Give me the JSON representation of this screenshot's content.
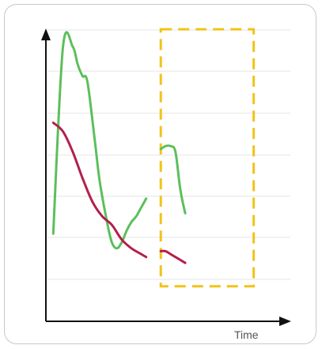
{
  "chart_data": {
    "type": "line",
    "xlabel": "Time",
    "ylabel": "",
    "xlim": [
      0,
      100
    ],
    "ylim": [
      0,
      100
    ],
    "grid": true,
    "highlight_region": {
      "x_start": 47,
      "x_end": 85,
      "y_min": 12,
      "y_max": 100,
      "color": "#f2c318"
    },
    "series": [
      {
        "color": "#5cbf5c",
        "segments": [
          [
            [
              3,
              30
            ],
            [
              7,
              94
            ],
            [
              11,
              94
            ],
            [
              13,
              88
            ],
            [
              15,
              84
            ],
            [
              17,
              82
            ],
            [
              20,
              62
            ],
            [
              22,
              48
            ],
            [
              25,
              34
            ],
            [
              27,
              27
            ],
            [
              29,
              25
            ],
            [
              31,
              27
            ],
            [
              33,
              31
            ],
            [
              35,
              34
            ],
            [
              37,
              36
            ],
            [
              39,
              39
            ],
            [
              41,
              42
            ]
          ],
          [
            [
              47,
              59
            ],
            [
              49,
              60
            ],
            [
              51,
              60
            ],
            [
              53,
              58
            ],
            [
              55,
              45
            ],
            [
              57,
              37
            ]
          ]
        ]
      },
      {
        "color": "#b2204b",
        "segments": [
          [
            [
              3,
              68
            ],
            [
              7,
              65
            ],
            [
              11,
              58
            ],
            [
              15,
              49
            ],
            [
              19,
              41
            ],
            [
              23,
              36
            ],
            [
              27,
              33
            ],
            [
              31,
              28
            ],
            [
              35,
              25
            ],
            [
              39,
              23
            ],
            [
              41,
              22
            ]
          ],
          [
            [
              47,
              24
            ],
            [
              49,
              24
            ],
            [
              51,
              23
            ],
            [
              53,
              22
            ],
            [
              55,
              21
            ],
            [
              57,
              20
            ]
          ]
        ]
      }
    ]
  },
  "colors": {
    "axis": "#111111",
    "grid": "#e6e6e6",
    "frame_border": "#c8c8c8"
  }
}
